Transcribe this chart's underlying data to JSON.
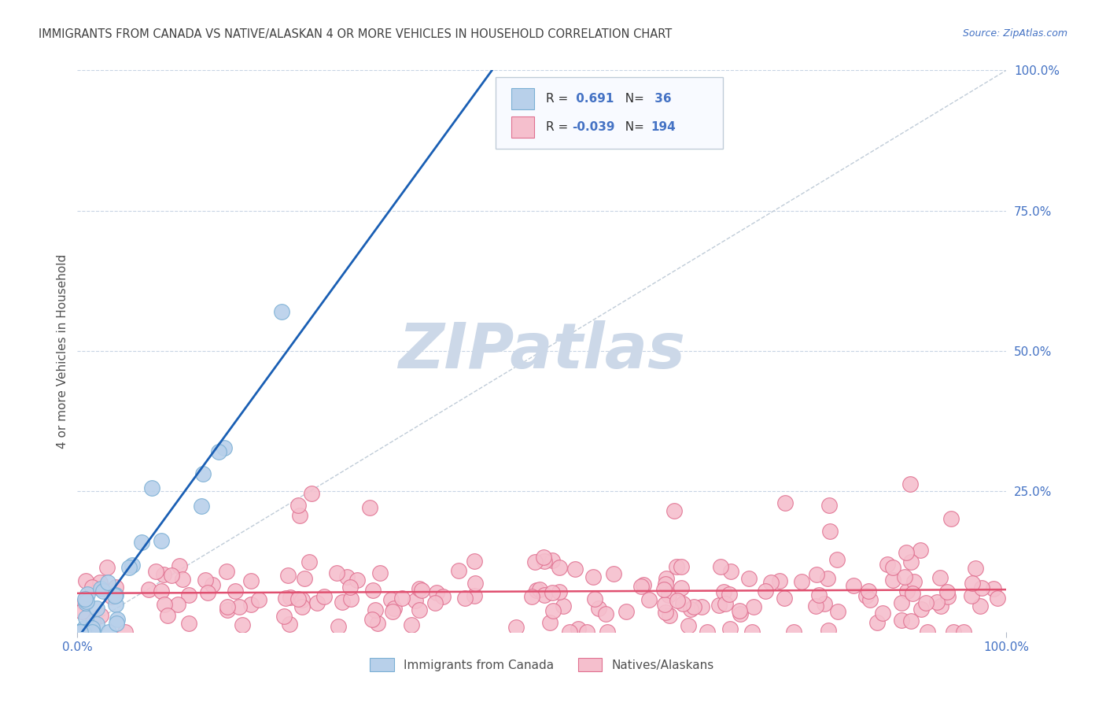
{
  "title": "IMMIGRANTS FROM CANADA VS NATIVE/ALASKAN 4 OR MORE VEHICLES IN HOUSEHOLD CORRELATION CHART",
  "source": "Source: ZipAtlas.com",
  "ylabel": "4 or more Vehicles in Household",
  "xlim": [
    0,
    1.0
  ],
  "ylim": [
    0,
    1.0
  ],
  "canada_color": "#b8d0ea",
  "canada_edge": "#7aafd4",
  "native_color": "#f5bfcd",
  "native_edge": "#e07090",
  "canada_line_color": "#1a5fb4",
  "native_line_color": "#e05070",
  "diag_line_color": "#c0ccd8",
  "legend_R_canada": "0.691",
  "legend_N_canada": "36",
  "legend_R_native": "-0.039",
  "legend_N_native": "194",
  "legend_label_canada": "Immigrants from Canada",
  "legend_label_native": "Natives/Alaskans",
  "watermark": "ZIPatlas",
  "watermark_color": "#ccd8e8",
  "background_color": "#ffffff",
  "grid_color": "#c8d4e4",
  "title_color": "#404040",
  "axis_label_color": "#505050",
  "tick_color_right": "#4472c4",
  "legend_text_black": "#303030",
  "legend_text_blue": "#4472c4"
}
